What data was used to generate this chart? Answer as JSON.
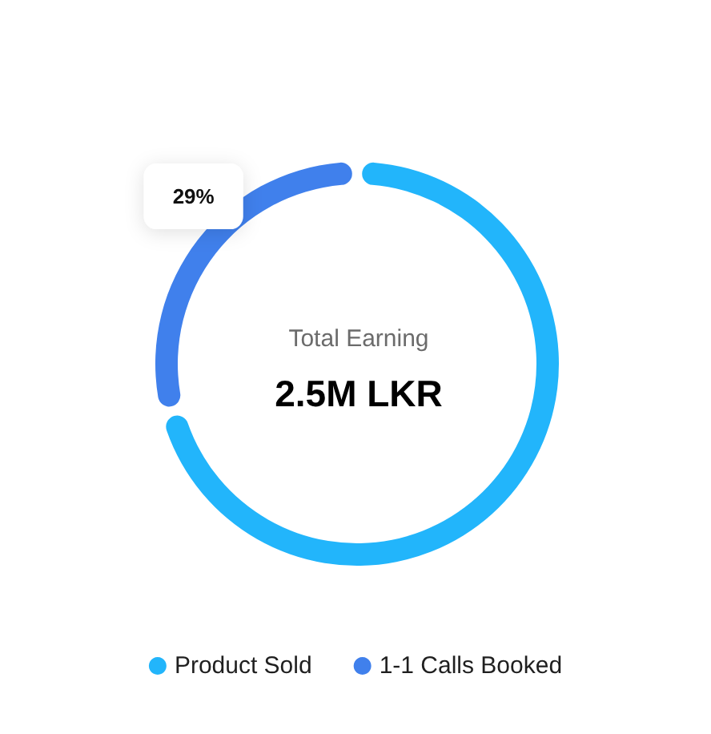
{
  "chart_data": {
    "type": "donut",
    "categories": [
      "Product Sold",
      "1-1 Calls Booked"
    ],
    "values": [
      71,
      29
    ],
    "colors": [
      "#22b5fb",
      "#4080ec"
    ],
    "value_labels": [
      null,
      "29%"
    ],
    "annotations": [
      "Total Earning",
      "2.5M LKR"
    ],
    "legend": "bottom"
  }
}
